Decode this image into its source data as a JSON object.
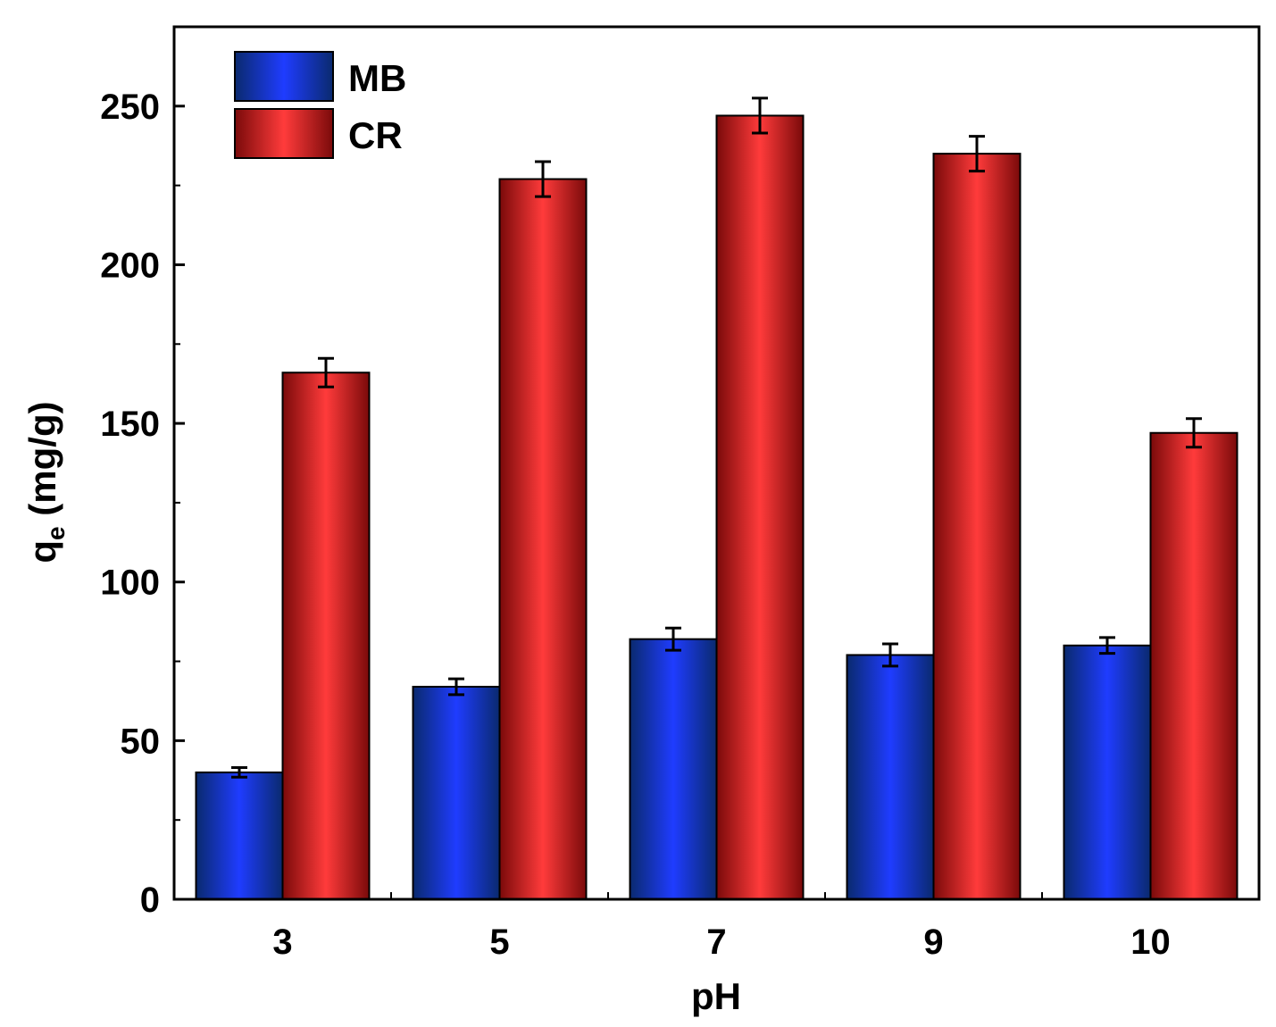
{
  "chart_data": {
    "type": "bar",
    "categories": [
      "3",
      "5",
      "7",
      "9",
      "10"
    ],
    "series": [
      {
        "name": "MB",
        "values": [
          40,
          67,
          82,
          77,
          80
        ],
        "errors": [
          1.5,
          2.5,
          3.5,
          3.5,
          2.5
        ],
        "color": "#1f3cff"
      },
      {
        "name": "CR",
        "values": [
          166,
          227,
          247,
          235,
          147
        ],
        "errors": [
          4.5,
          5.5,
          5.5,
          5.5,
          4.5
        ],
        "color": "#ff3b3b"
      }
    ],
    "yticks": [
      "0",
      "50",
      "100",
      "150",
      "200",
      "250"
    ],
    "ylim": [
      0,
      275
    ],
    "xlabel": "pH",
    "ylabel_main": "q",
    "ylabel_sub": "e",
    "ylabel_unit": " (mg/g)",
    "grid": false,
    "legend_position": "top-left"
  }
}
